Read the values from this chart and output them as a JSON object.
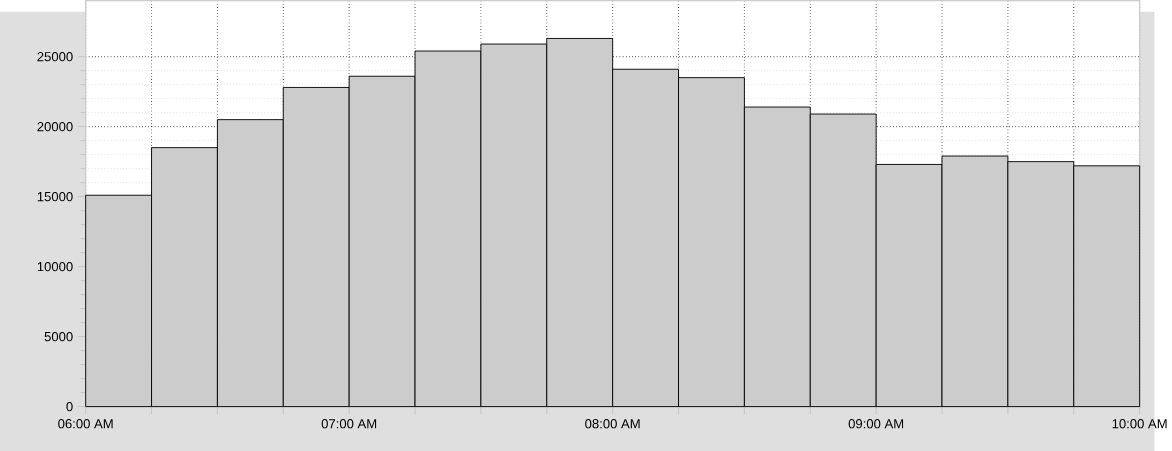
{
  "chart_data": {
    "type": "histogram",
    "bins": [
      6,
      6.25,
      6.5,
      6.75,
      7,
      7.25,
      7.5,
      7.75,
      8,
      8.25,
      8.5,
      8.75,
      9,
      9.25,
      9.5,
      9.75,
      10
    ],
    "values": [
      15100,
      18500,
      20500,
      22800,
      23600,
      25400,
      25900,
      26300,
      24100,
      23500,
      21400,
      20900,
      17300,
      17900,
      17500,
      17200
    ],
    "color": "#cccccc",
    "xlim": [
      6,
      10
    ],
    "xticks": [
      {
        "value": 6,
        "label": "06:00 AM"
      },
      {
        "value": 6.25,
        "label": null
      },
      {
        "value": 6.5,
        "label": null
      },
      {
        "value": 6.75,
        "label": null
      },
      {
        "value": 7,
        "label": "07:00 AM"
      },
      {
        "value": 7.25,
        "label": null
      },
      {
        "value": 7.5,
        "label": null
      },
      {
        "value": 7.75,
        "label": null
      },
      {
        "value": 8,
        "label": "08:00 AM"
      },
      {
        "value": 8.25,
        "label": null
      },
      {
        "value": 8.5,
        "label": null
      },
      {
        "value": 8.75,
        "label": null
      },
      {
        "value": 9,
        "label": "09:00 AM"
      },
      {
        "value": 9.25,
        "label": null
      },
      {
        "value": 9.5,
        "label": null
      },
      {
        "value": 9.75,
        "label": null
      },
      {
        "value": 10,
        "label": "10:00 AM"
      }
    ],
    "ylim": [
      0,
      29000
    ],
    "yticks": [
      0,
      5000,
      10000,
      15000,
      20000,
      25000
    ],
    "grid": true
  }
}
